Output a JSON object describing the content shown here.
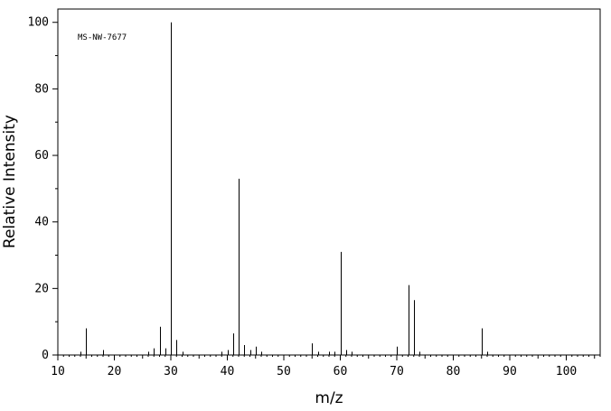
{
  "chart_data": {
    "type": "bar",
    "title": "",
    "annotation": "MS-NW-7677",
    "xlabel": "m/z",
    "ylabel": "Relative Intensity",
    "xlim": [
      10,
      106
    ],
    "ylim": [
      0,
      104
    ],
    "x_ticks": [
      10,
      20,
      30,
      40,
      50,
      60,
      70,
      80,
      90,
      100
    ],
    "y_ticks": [
      0,
      20,
      40,
      60,
      80,
      100
    ],
    "grid": false,
    "series": [
      {
        "x": [
          14,
          15,
          18,
          26,
          27,
          28,
          29,
          30,
          31,
          32,
          39,
          40,
          41,
          42,
          43,
          44,
          45,
          46,
          55,
          56,
          58,
          59,
          60,
          61,
          62,
          70,
          72,
          73,
          74,
          85,
          86
        ],
        "values": [
          1,
          8,
          1.5,
          1,
          2,
          8.5,
          2,
          100,
          4.5,
          1,
          1,
          1.5,
          6.5,
          53,
          3,
          1.5,
          2.5,
          1,
          3.5,
          1,
          1,
          1,
          31,
          1.5,
          1,
          2.5,
          21,
          16.5,
          1,
          8,
          1
        ]
      }
    ]
  }
}
